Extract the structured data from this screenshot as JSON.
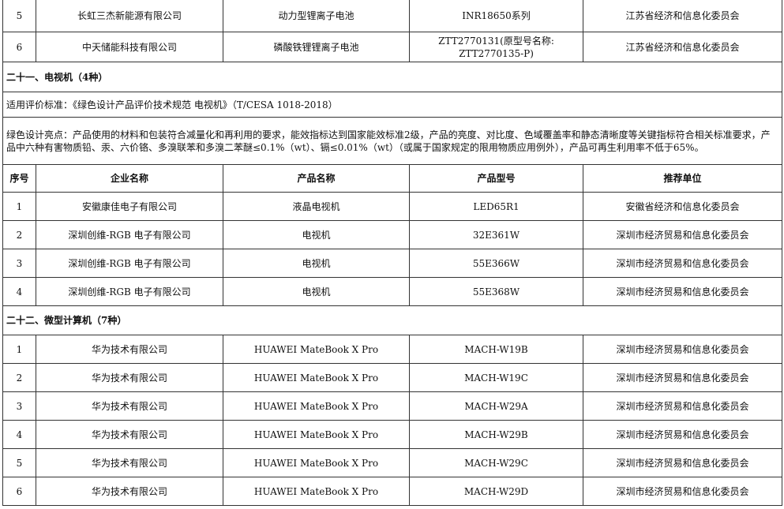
{
  "top_rows": [
    {
      "no": "5",
      "company": "长虹三杰新能源有限公司",
      "product": "动力型锂离子电池",
      "model": "INR18650系列",
      "unit": "江苏省经济和信息化委员会"
    },
    {
      "no": "6",
      "company": "中天储能科技有限公司",
      "product": "磷酸铁锂锂离子电池",
      "model": "ZTT2770131(原型号名称:\nZTT2770135-P)",
      "unit": "江苏省经济和信息化委员会"
    }
  ],
  "tv": {
    "title": "二十一、电视机（4种）",
    "standard": "适用评价标准：《绿色设计产品评价技术规范 电视机》（T/CESA 1018-2018）",
    "highlights": "绿色设计亮点：产品使用的材料和包装符合减量化和再利用的要求，能效指标达到国家能效标准2级，产品的亮度、对比度、色域覆盖率和静态清晰度等关键指标符合相关标准要求，产品中六种有害物质铅、汞、六价铬、多溴联苯和多溴二苯醚≤0.1%（wt）、镉≤0.01%（wt）（或属于国家规定的限用物质应用例外），产品可再生利用率不低于65%。",
    "headers": {
      "no": "序号",
      "company": "企业名称",
      "product": "产品名称",
      "model": "产品型号",
      "unit": "推荐单位"
    },
    "rows": [
      {
        "no": "1",
        "company": "安徽康佳电子有限公司",
        "product": "液晶电视机",
        "model": "LED65R1",
        "unit": "安徽省经济和信息化委员会"
      },
      {
        "no": "2",
        "company": "深圳创维-RGB 电子有限公司",
        "product": "电视机",
        "model": "32E361W",
        "unit": "深圳市经济贸易和信息化委员会"
      },
      {
        "no": "3",
        "company": "深圳创维-RGB 电子有限公司",
        "product": "电视机",
        "model": "55E366W",
        "unit": "深圳市经济贸易和信息化委员会"
      },
      {
        "no": "4",
        "company": "深圳创维-RGB 电子有限公司",
        "product": "电视机",
        "model": "55E368W",
        "unit": "深圳市经济贸易和信息化委员会"
      }
    ]
  },
  "pc": {
    "title": "二十二、微型计算机（7种）",
    "rows": [
      {
        "no": "1",
        "company": "华为技术有限公司",
        "product": "HUAWEI MateBook X Pro",
        "model": "MACH-W19B",
        "unit": "深圳市经济贸易和信息化委员会"
      },
      {
        "no": "2",
        "company": "华为技术有限公司",
        "product": "HUAWEI MateBook X Pro",
        "model": "MACH-W19C",
        "unit": "深圳市经济贸易和信息化委员会"
      },
      {
        "no": "3",
        "company": "华为技术有限公司",
        "product": "HUAWEI MateBook X Pro",
        "model": "MACH-W29A",
        "unit": "深圳市经济贸易和信息化委员会"
      },
      {
        "no": "4",
        "company": "华为技术有限公司",
        "product": "HUAWEI MateBook X Pro",
        "model": "MACH-W29B",
        "unit": "深圳市经济贸易和信息化委员会"
      },
      {
        "no": "5",
        "company": "华为技术有限公司",
        "product": "HUAWEI MateBook X Pro",
        "model": "MACH-W29C",
        "unit": "深圳市经济贸易和信息化委员会"
      },
      {
        "no": "6",
        "company": "华为技术有限公司",
        "product": "HUAWEI MateBook X Pro",
        "model": "MACH-W29D",
        "unit": "深圳市经济贸易和信息化委员会"
      }
    ]
  }
}
